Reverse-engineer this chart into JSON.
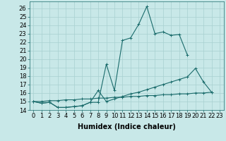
{
  "xlabel": "Humidex (Indice chaleur)",
  "bg_color": "#c8e8e8",
  "line_color": "#1a6b6b",
  "grid_color": "#a8d0d0",
  "xlim": [
    -0.5,
    23.5
  ],
  "ylim": [
    14,
    26.8
  ],
  "yticks": [
    14,
    15,
    16,
    17,
    18,
    19,
    20,
    21,
    22,
    23,
    24,
    25,
    26
  ],
  "xticks": [
    0,
    1,
    2,
    3,
    4,
    5,
    6,
    7,
    8,
    9,
    10,
    11,
    12,
    13,
    14,
    15,
    16,
    17,
    18,
    19,
    20,
    21,
    22,
    23
  ],
  "series1_y": [
    15.0,
    14.8,
    14.9,
    14.3,
    14.3,
    14.4,
    14.5,
    14.9,
    14.9,
    19.4,
    16.3,
    22.2,
    22.5,
    24.1,
    26.2,
    23.0,
    23.2,
    22.8,
    22.9,
    20.5,
    null,
    null,
    null,
    null
  ],
  "series2_y": [
    15.0,
    14.8,
    14.9,
    14.3,
    14.3,
    14.4,
    14.5,
    14.9,
    16.3,
    15.0,
    15.3,
    15.6,
    15.9,
    16.1,
    16.4,
    16.7,
    17.0,
    17.3,
    17.6,
    17.9,
    18.9,
    17.3,
    16.1,
    null
  ],
  "series3_y": [
    15.0,
    15.0,
    15.1,
    15.1,
    15.2,
    15.2,
    15.3,
    15.3,
    15.4,
    15.4,
    15.5,
    15.5,
    15.6,
    15.6,
    15.7,
    15.7,
    15.8,
    15.8,
    15.9,
    15.9,
    16.0,
    16.0,
    16.1,
    null
  ],
  "xlabel_fontsize": 7,
  "tick_fontsize": 6
}
